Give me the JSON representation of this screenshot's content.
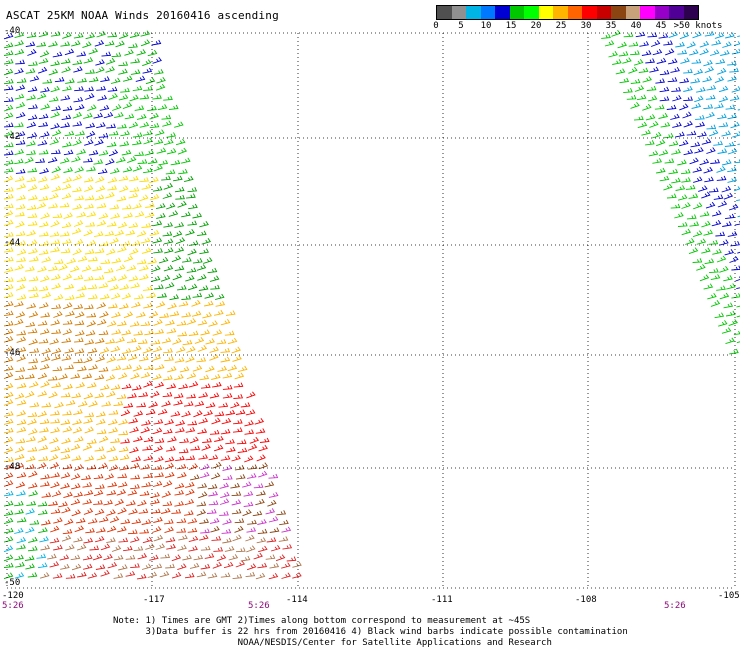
{
  "title": "ASCAT 25KM NOAA Winds 20160416 ascending",
  "legend": {
    "colors": [
      "#505050",
      "#909090",
      "#00b4e6",
      "#0078ff",
      "#0000d2",
      "#00c800",
      "#00ff00",
      "#ffff00",
      "#ffb400",
      "#ff6400",
      "#ff0000",
      "#c80000",
      "#8b4513",
      "#c8a07a",
      "#ff00ff",
      "#9600c8",
      "#500096",
      "#2d0050"
    ],
    "labels": [
      "0",
      "5",
      "10",
      "15",
      "20",
      "25",
      "30",
      "35",
      "40",
      "45",
      ">50 knots"
    ]
  },
  "y_axis": {
    "labels": [
      "-40",
      "-42",
      "-44",
      "-46",
      "-48",
      "-50"
    ]
  },
  "x_axis": {
    "labels": [
      "-120",
      "-117",
      "-114",
      "-111",
      "-108",
      "-105"
    ]
  },
  "times": [
    "5:26",
    "5:26",
    "5:26"
  ],
  "notes": [
    "Note: 1) Times are GMT 2)Times along bottom correspond to measurement at ~45S",
    "      3)Data buffer is 22 hrs from 20160416 4) Black wind barbs indicate possible contamination",
    "                       NOAA/NESDIS/Center for Satellite Applications and Research"
  ]
}
